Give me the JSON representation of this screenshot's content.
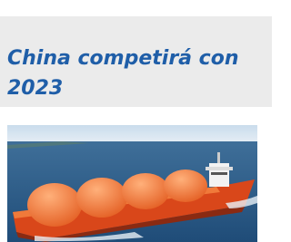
{
  "header": {
    "title_lines": [
      "China competirá con",
      "2023"
    ]
  }
}
